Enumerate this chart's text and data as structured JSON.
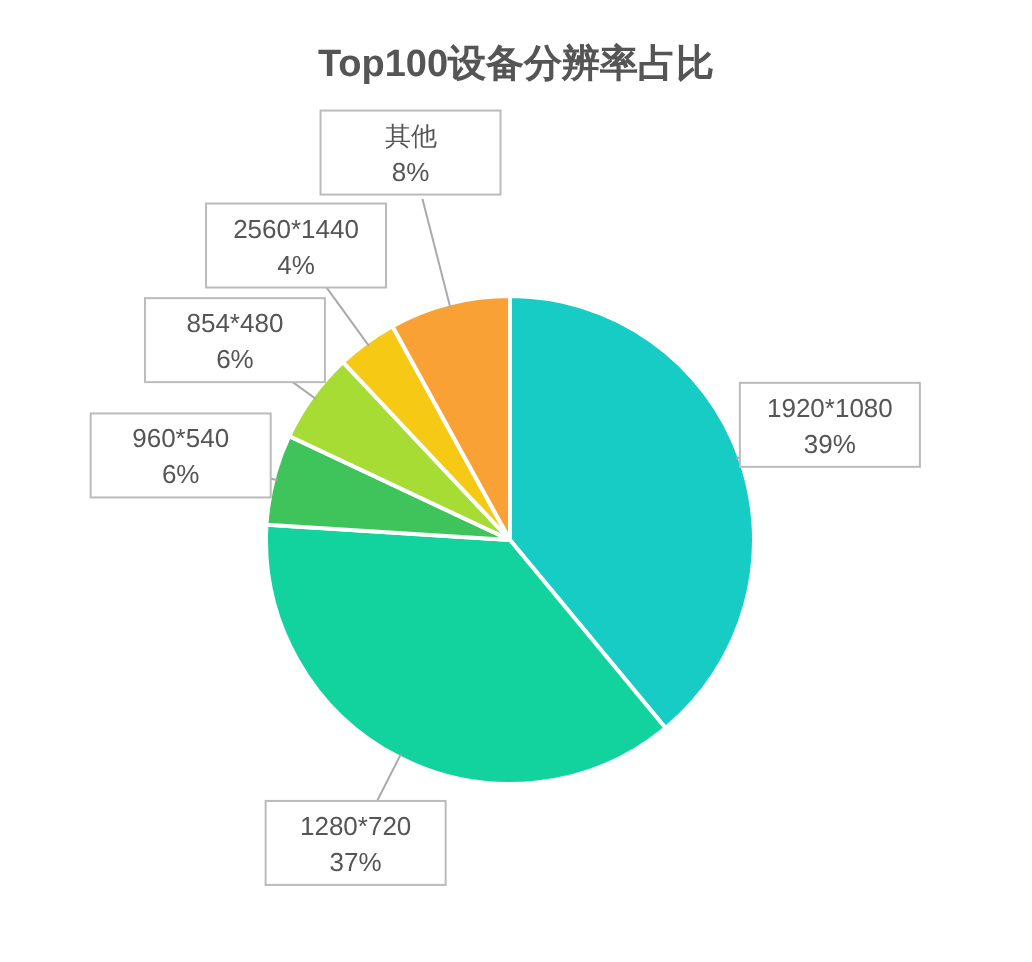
{
  "chart_data": {
    "type": "pie",
    "title": "Top100设备分辨率占比",
    "categories": [
      "1920*1080",
      "1280*720",
      "960*540",
      "854*480",
      "2560*1440",
      "其他"
    ],
    "values": [
      39,
      37,
      6,
      6,
      4,
      8
    ],
    "value_labels": [
      "39%",
      "37%",
      "6%",
      "6%",
      "4%",
      "8%"
    ],
    "colors": [
      "#16ccc4",
      "#12d39e",
      "#3ec45a",
      "#a6dc34",
      "#f6c915",
      "#f9a134"
    ]
  }
}
